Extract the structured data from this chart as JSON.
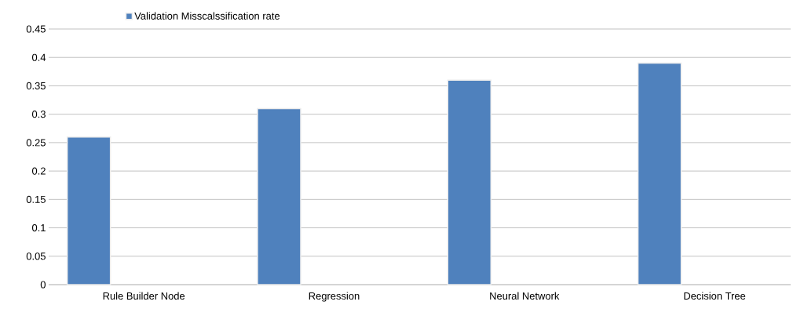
{
  "chart_data": {
    "type": "bar",
    "categories": [
      "Rule Builder Node",
      "Regression",
      "Neural Network",
      "Decision Tree"
    ],
    "series": [
      {
        "name": "Validation Misscalssification rate",
        "color": "#4f81bd",
        "values": [
          0.26,
          0.31,
          0.36,
          0.39
        ]
      }
    ],
    "ylim": [
      0,
      0.45
    ],
    "yticks": [
      0,
      0.05,
      0.1,
      0.15,
      0.2,
      0.25,
      0.3,
      0.35,
      0.4,
      0.45
    ],
    "grid": "y",
    "legend": "top"
  }
}
